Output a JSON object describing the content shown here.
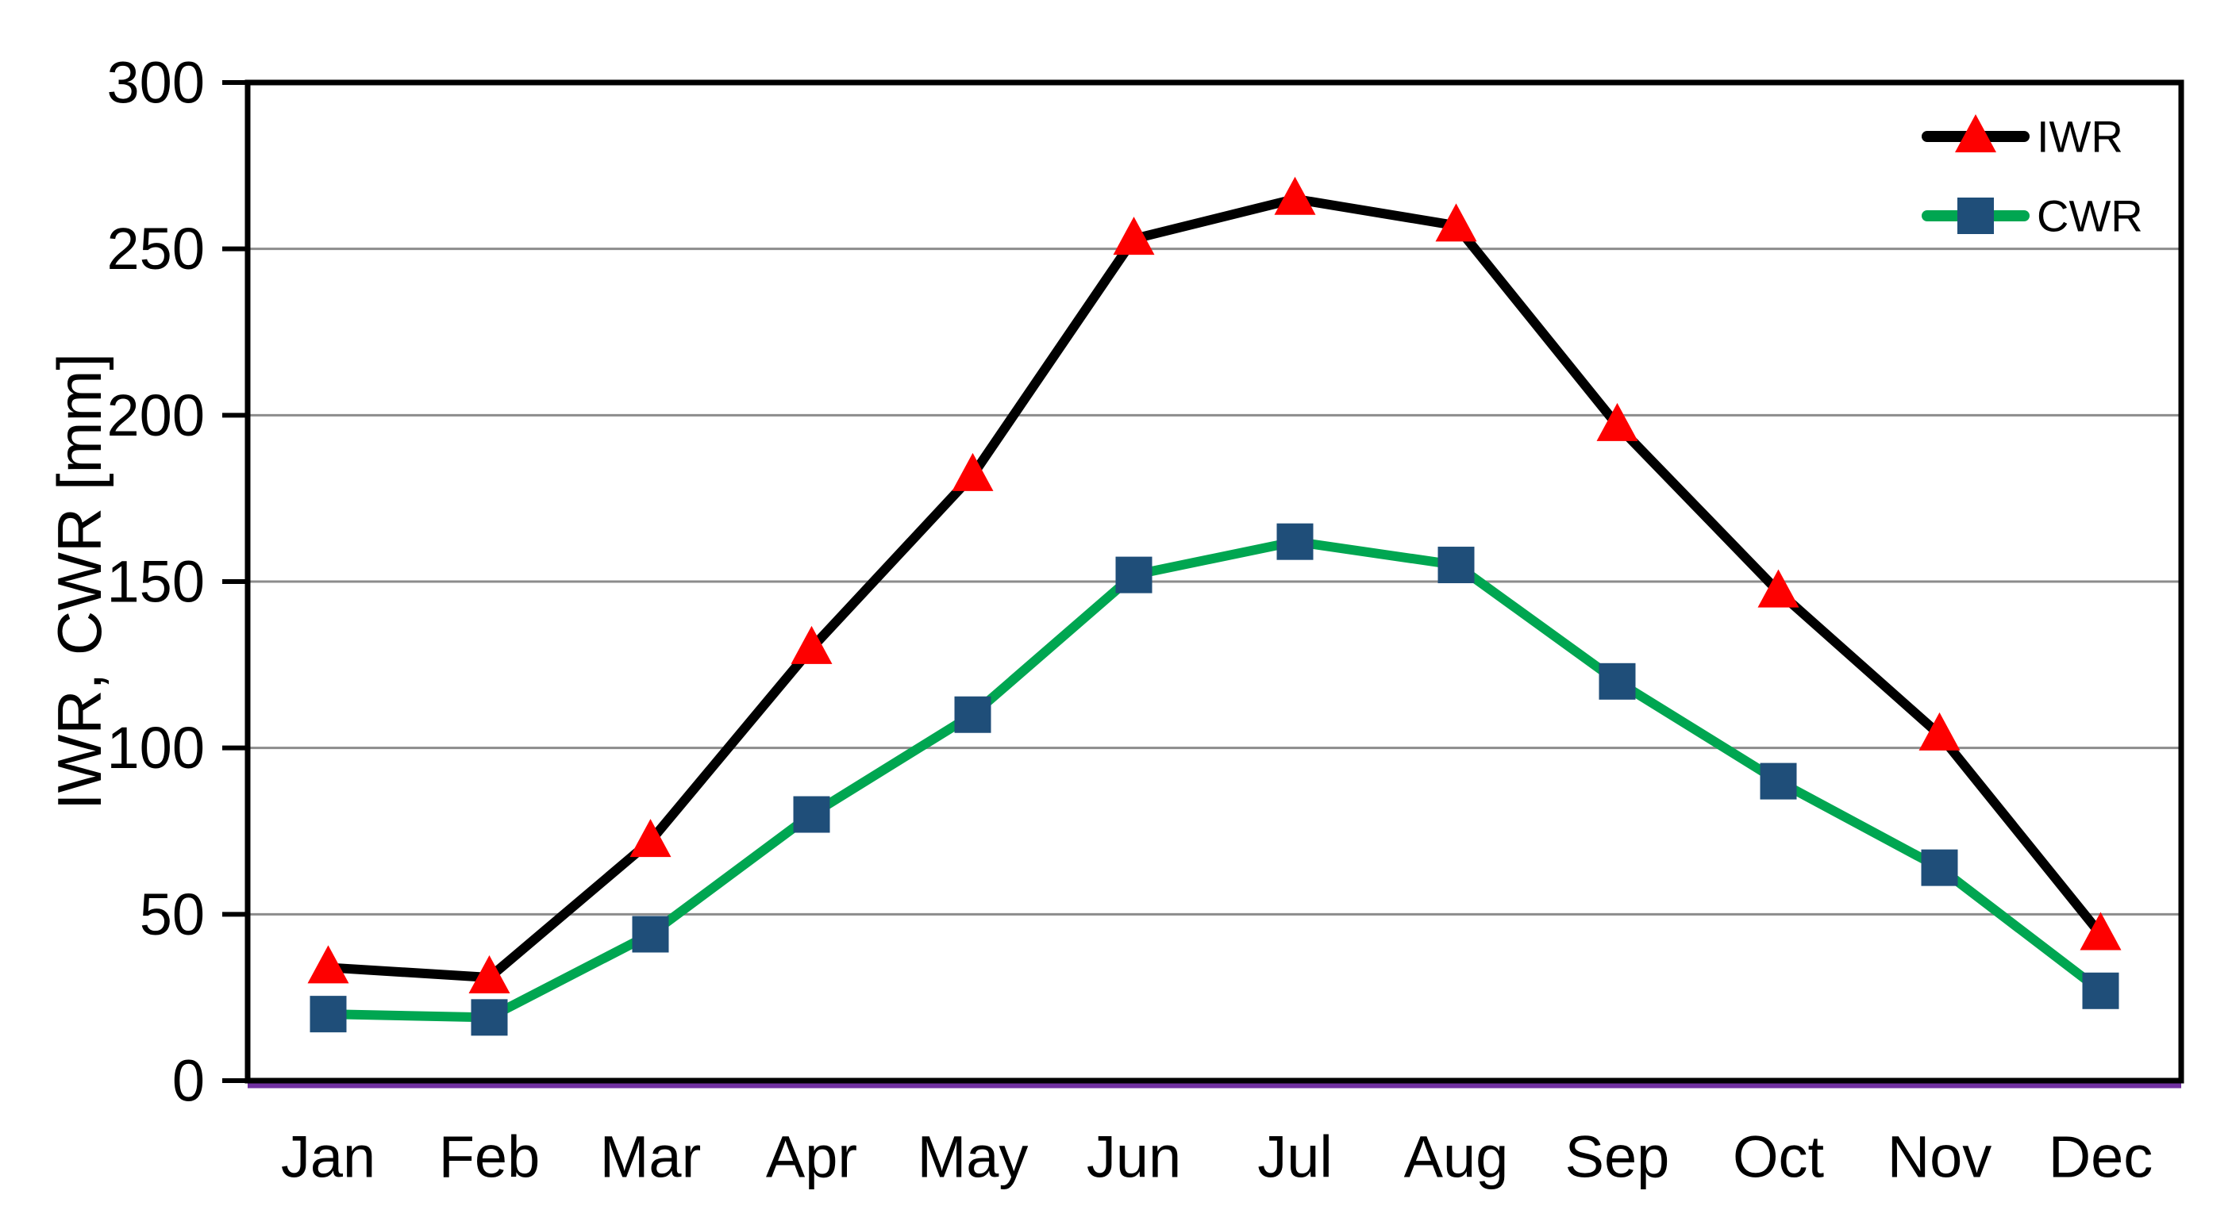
{
  "chart_data": {
    "type": "line",
    "title": "",
    "xlabel": "",
    "ylabel": "IWR, CWR [mm]",
    "categories": [
      "Jan",
      "Feb",
      "Mar",
      "Apr",
      "May",
      "Jun",
      "Jul",
      "Aug",
      "Sep",
      "Oct",
      "Nov",
      "Dec"
    ],
    "y_ticks": [
      0,
      50,
      100,
      150,
      200,
      250,
      300
    ],
    "ylim": [
      0,
      300
    ],
    "grid": "horizontal-gridlines-on",
    "legend_position": "top-right-inside",
    "series": [
      {
        "name": "IWR",
        "line_color": "#000000",
        "marker": "triangle",
        "marker_color": "#FE0000",
        "values": [
          34,
          31,
          72,
          130,
          182,
          253,
          265,
          257,
          197,
          147,
          104,
          44
        ]
      },
      {
        "name": "CWR",
        "line_color": "#00A651",
        "marker": "square",
        "marker_color": "#1F4E79",
        "values": [
          20,
          19,
          44,
          80,
          110,
          152,
          162,
          155,
          120,
          90,
          64,
          27
        ]
      }
    ],
    "colors": {
      "gridline": "#8C8C8C",
      "plot_border": "#000000",
      "tick": "#000000",
      "text": "#000000",
      "baseline_accent": "#7030A0",
      "background": "#FFFFFF"
    }
  }
}
